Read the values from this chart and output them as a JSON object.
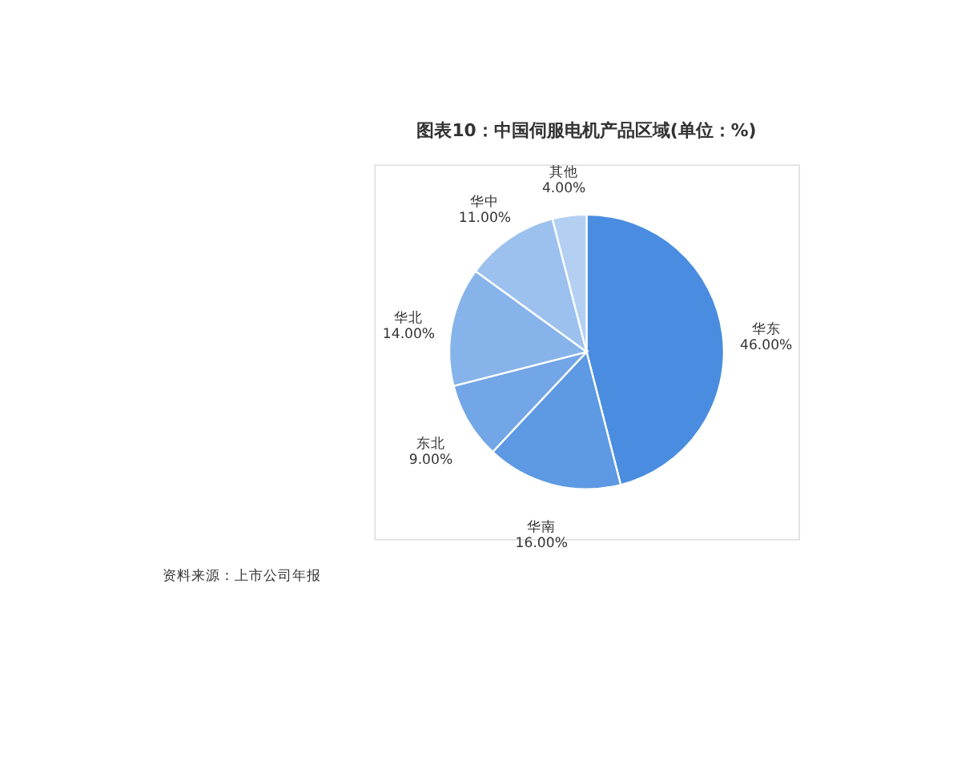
{
  "chart_data": {
    "type": "pie",
    "title": "图表10：中国伺服电机产品区域(单位：%)",
    "categories": [
      "华东",
      "华南",
      "东北",
      "华北",
      "华中",
      "其他"
    ],
    "values": [
      46,
      16,
      9,
      14,
      11,
      4
    ],
    "value_labels": [
      "46.00%",
      "16.00%",
      "9.00%",
      "14.00%",
      "11.00%",
      "4.00%"
    ],
    "colors": [
      "#4a8de0",
      "#5e9ae3",
      "#72a6e6",
      "#86b3ea",
      "#9cc1ee",
      "#b3d0f3"
    ],
    "legend": false,
    "annotations": [
      "资料来源：上市公司年报"
    ]
  }
}
